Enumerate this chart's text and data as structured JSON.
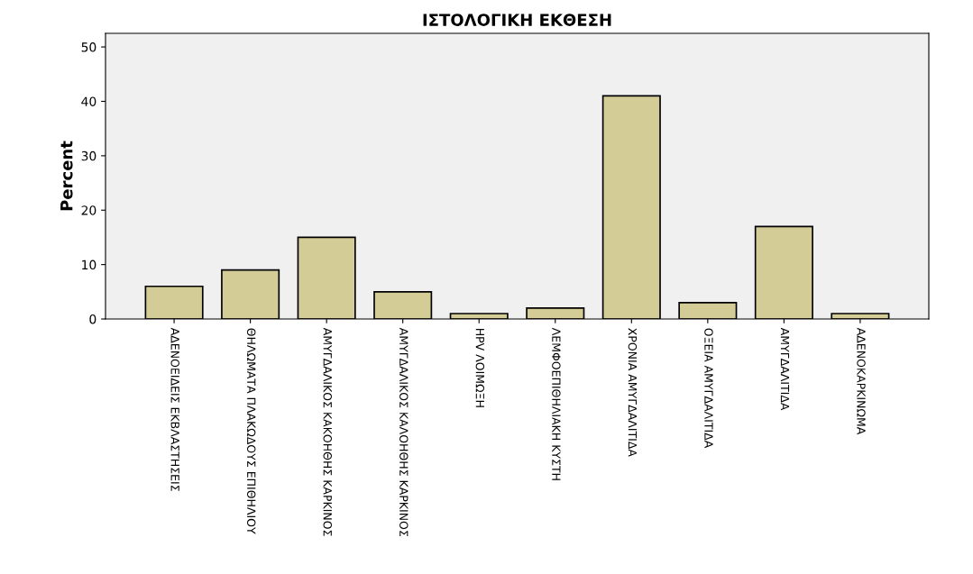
{
  "chart_data": {
    "type": "bar",
    "title": "ΙΣΤΟΛΟΓΙΚΗ ΕΚΘΕΣΗ",
    "ylabel": "Percent",
    "categories": [
      "ΑΔΕΝΟΕΙΔΕΙΣ ΕΚΒΛΑΣΤΗΣΕΙΣ",
      "ΘΗΛΩΜΑΤΑ ΠΛΑΚΩΔΟΥΣ ΕΠΙΘΗΛΙΟΥ",
      "ΑΜΥΓΔΑΛΙΚΟΣ ΚΑΚΟΗΘΗΣ ΚΑΡΚΙΝΟΣ",
      "ΑΜΥΓΔΑΛΙΚΟΣ ΚΑΛΟΗΘΗΣ ΚΑΡΚΙΝΟΣ",
      "HPV ΛΟΙΜΩΞΗ",
      "ΛΕΜΦΟΕΠΙΘΗΛΙΑΚΗ ΚΥΣΤΗ",
      "ΧΡΟΝΙΑ ΑΜΥΓΔΑΛΙΤΙΔΑ",
      "ΟΞΕΙΑ ΑΜΥΓΔΑΛΙΤΙΔΑ",
      "ΑΜΥΓΔΑΛΙΤΙΔΑ",
      "ΑΔΕΝΟΚΑΡΚΙΝΩΜΑ"
    ],
    "values": [
      6,
      9,
      15,
      5,
      1,
      2,
      41,
      3,
      17,
      1
    ],
    "color": "#d3cc96",
    "ylim": [
      0,
      52.5
    ],
    "yticks": [
      0,
      10,
      20,
      30,
      40,
      50
    ],
    "grid": false
  }
}
